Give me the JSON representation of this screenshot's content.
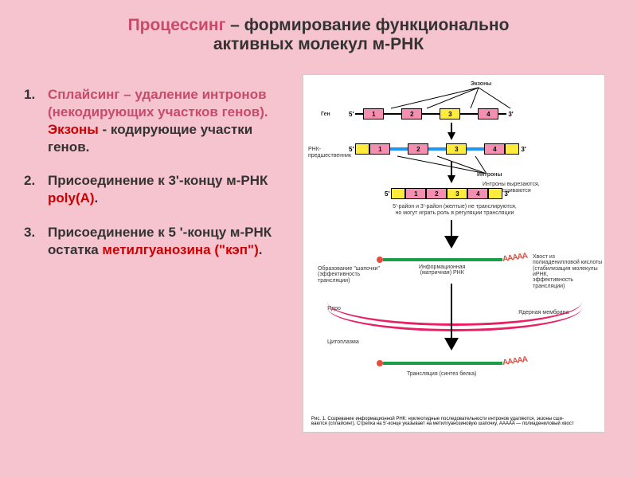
{
  "title": {
    "word_highlight": "Процессинг",
    "line1_rest": " – формирование функционально",
    "line2": "активных молекул м-РНК",
    "highlight_color": "#c94a6a",
    "rest_color": "#333333",
    "fontsize": 21
  },
  "list": [
    {
      "num": "1.",
      "parts": [
        {
          "text": "Сплайсинг – удаление интронов (некодирующих участков генов). ",
          "color": "#c94a6a"
        },
        {
          "text": "Экзоны",
          "color": "#cc0000"
        },
        {
          "text": " - кодирующие участки генов.",
          "color": "#333333"
        }
      ]
    },
    {
      "num": "2.",
      "parts": [
        {
          "text": "Присоединение к 3'-концу м-РНК ",
          "color": "#333333"
        },
        {
          "text": "poly(A)",
          "color": "#cc0000"
        },
        {
          "text": ".",
          "color": "#333333"
        }
      ]
    },
    {
      "num": "3.",
      "parts": [
        {
          "text": "Присоединение к 5 '-концу м-РНК  остатка ",
          "color": "#333333"
        },
        {
          "text": "метилгуанозина (\"кэп\")",
          "color": "#cc0000"
        },
        {
          "text": ".",
          "color": "#333333"
        }
      ]
    }
  ],
  "list_fontsize": 17,
  "diagram": {
    "background": "#ffffff",
    "labels": {
      "exons_top": "Экзоны",
      "gene": "Ген",
      "precursor": "РНК-предшественник",
      "introns": "Интроны",
      "splice_note": "Интроны вырезаются,\nэкзоны сшиваются",
      "utr_note": "5'-район и 3'-район (желтые) не транслируются,\nно могут играть роль в регуляции трансляции",
      "cap_note": "Образование \"шапочки\"\n(эффективность трансляции)",
      "mrna_label": "Информационная\n(матричная) РНК",
      "polyA_note": "Хвост из полиаденилловой кислоты\n(стабилизация молекулы иРНК,\nэффективность трансляции)",
      "nucleus": "Ядро",
      "nuclear_membrane": "Ядерная мембрана",
      "cytoplasm": "Цитоплазма",
      "translation": "Трансляция (синтез белка)"
    },
    "exons": {
      "numbers": [
        "1",
        "2",
        "3",
        "4"
      ],
      "colors": [
        "#f48fb1",
        "#f48fb1",
        "#ffeb3b",
        "#f48fb1"
      ],
      "border": "#000000"
    },
    "joined_exons": {
      "numbers": [
        "1",
        "2",
        "3",
        "4"
      ],
      "colors": [
        "#f48fb1",
        "#f48fb1",
        "#ffeb3b",
        "#f48fb1"
      ]
    },
    "intron_color": "#2196f3",
    "gene_line_color": "#000000",
    "five_prime": "5'",
    "three_prime": "3'",
    "mrna_color": "#1a9e4a",
    "cap_color": "#e74c3c",
    "polyA_color": "#e74c3c",
    "polyA_glyph": "AAAAA",
    "membrane_color": "#e91e63",
    "figure_caption": "Рис. 1. Созревание информационной РНК: нуклеотидные последовательности интронов удаляются, экзоны сши-\nваются (сплайсинг). Стрелка на 5'-конце указывает на метилгуанозиновую шапочку, AAAAA — полиадениловый хвост"
  },
  "slide_bg": "#f5c4cf"
}
